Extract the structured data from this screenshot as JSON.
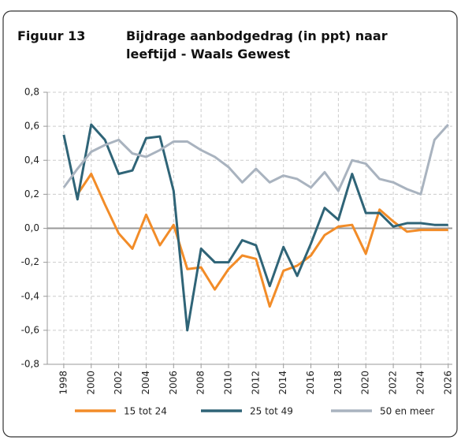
{
  "chart_data": {
    "type": "line",
    "figure_label": "Figuur 13",
    "title": "Bijdrage aanbodgedrag (in ppt) naar leeftijd - Waals Gewest",
    "x": [
      1998,
      1999,
      2000,
      2001,
      2002,
      2003,
      2004,
      2005,
      2006,
      2007,
      2008,
      2009,
      2010,
      2011,
      2012,
      2013,
      2014,
      2015,
      2016,
      2017,
      2018,
      2019,
      2020,
      2021,
      2022,
      2023,
      2024,
      2025,
      2026
    ],
    "series": [
      {
        "name": "15 tot 24",
        "color": "#f28c28",
        "values": [
          null,
          0.2,
          0.32,
          0.14,
          -0.03,
          -0.12,
          0.08,
          -0.1,
          0.02,
          -0.24,
          -0.23,
          -0.36,
          -0.24,
          -0.16,
          -0.18,
          -0.46,
          -0.25,
          -0.22,
          -0.16,
          -0.04,
          0.01,
          0.02,
          -0.15,
          0.11,
          0.04,
          -0.02,
          -0.01,
          -0.01,
          -0.01
        ]
      },
      {
        "name": "25 tot 49",
        "color": "#2f6477",
        "values": [
          0.55,
          0.17,
          0.61,
          0.52,
          0.32,
          0.34,
          0.53,
          0.54,
          0.22,
          -0.6,
          -0.12,
          -0.2,
          -0.2,
          -0.07,
          -0.1,
          -0.34,
          -0.11,
          -0.28,
          -0.09,
          0.12,
          0.05,
          0.32,
          0.09,
          0.09,
          0.01,
          0.03,
          0.03,
          0.02,
          0.02
        ]
      },
      {
        "name": "50 en meer",
        "color": "#a9b3bf",
        "values": [
          0.24,
          0.35,
          0.45,
          0.49,
          0.52,
          0.44,
          0.42,
          0.46,
          0.51,
          0.51,
          0.46,
          0.42,
          0.36,
          0.27,
          0.35,
          0.27,
          0.31,
          0.29,
          0.24,
          0.33,
          0.22,
          0.4,
          0.38,
          0.29,
          0.27,
          0.23,
          0.2,
          0.52,
          0.61
        ]
      }
    ],
    "xlim": [
      1996.8,
      2026.3
    ],
    "xticks": [
      1998,
      2000,
      2002,
      2004,
      2006,
      2008,
      2010,
      2012,
      2014,
      2016,
      2018,
      2020,
      2022,
      2024,
      2026
    ],
    "ylim": [
      -0.8,
      0.8
    ],
    "yticks": [
      {
        "value": -0.8,
        "label": "-0,8"
      },
      {
        "value": -0.6,
        "label": "-0,6"
      },
      {
        "value": -0.4,
        "label": "-0,4"
      },
      {
        "value": -0.2,
        "label": "-0,2"
      },
      {
        "value": 0,
        "label": "0,0"
      },
      {
        "value": 0.2,
        "label": "0,2"
      },
      {
        "value": 0.4,
        "label": "0,4"
      },
      {
        "value": 0.6,
        "label": "0,6"
      },
      {
        "value": 0.8,
        "label": "0,8"
      }
    ],
    "grid": true,
    "legend": "bottom"
  }
}
